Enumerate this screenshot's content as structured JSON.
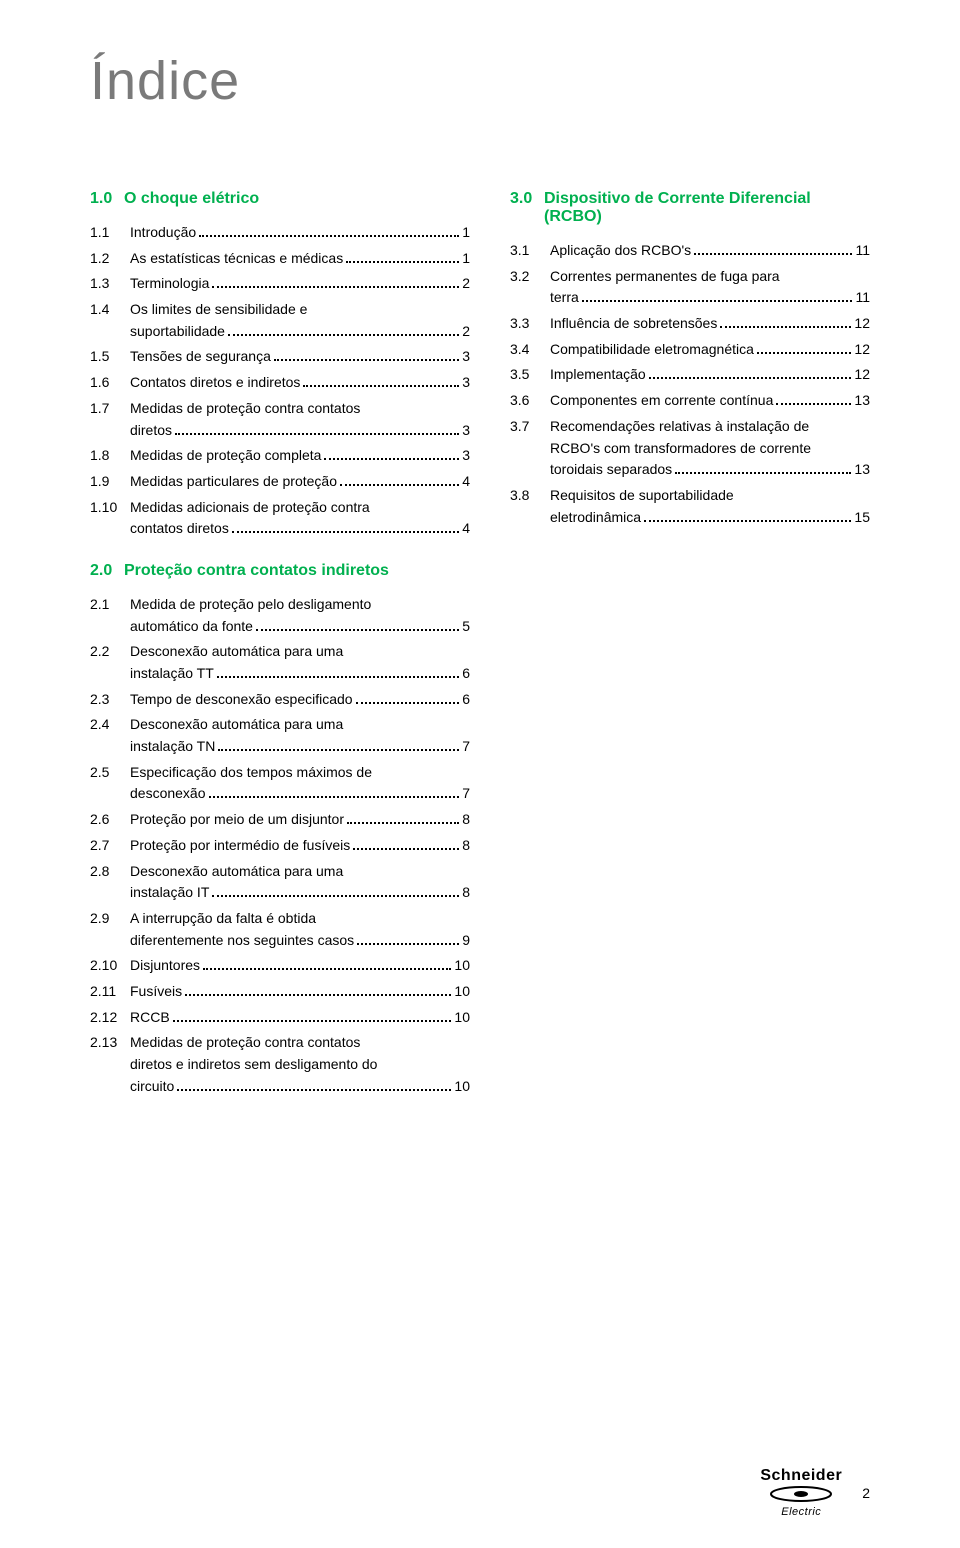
{
  "title": "Índice",
  "left": {
    "section1": {
      "num": "1.0",
      "label": "O choque elétrico",
      "items": [
        {
          "num": "1.1",
          "lines": [
            {
              "t": "Introdução",
              "p": "1"
            }
          ]
        },
        {
          "num": "1.2",
          "lines": [
            {
              "t": "As estatísticas técnicas e médicas",
              "p": "1"
            }
          ]
        },
        {
          "num": "1.3",
          "lines": [
            {
              "t": "Terminologia",
              "p": "2"
            }
          ]
        },
        {
          "num": "1.4",
          "lines": [
            {
              "t": "Os limites de sensibilidade e"
            },
            {
              "t": "suportabilidade",
              "p": "2"
            }
          ]
        },
        {
          "num": "1.5",
          "lines": [
            {
              "t": "Tensões de segurança",
              "p": "3"
            }
          ]
        },
        {
          "num": "1.6",
          "lines": [
            {
              "t": "Contatos diretos e indiretos",
              "p": "3"
            }
          ]
        },
        {
          "num": "1.7",
          "lines": [
            {
              "t": "Medidas de proteção contra contatos"
            },
            {
              "t": "diretos",
              "p": "3"
            }
          ]
        },
        {
          "num": "1.8",
          "lines": [
            {
              "t": "Medidas de proteção completa",
              "p": "3"
            }
          ]
        },
        {
          "num": "1.9",
          "lines": [
            {
              "t": "Medidas particulares de proteção",
              "p": "4"
            }
          ]
        },
        {
          "num": "1.10",
          "lines": [
            {
              "t": "Medidas adicionais de proteção contra"
            },
            {
              "t": "contatos diretos",
              "p": "4"
            }
          ]
        }
      ]
    },
    "section2": {
      "num": "2.0",
      "label": "Proteção contra contatos indiretos",
      "items": [
        {
          "num": "2.1",
          "lines": [
            {
              "t": "Medida de proteção pelo desligamento"
            },
            {
              "t": "automático da fonte",
              "p": "5"
            }
          ]
        },
        {
          "num": "2.2",
          "lines": [
            {
              "t": "Desconexão automática para uma"
            },
            {
              "t": "instalação TT",
              "p": "6"
            }
          ]
        },
        {
          "num": "2.3",
          "lines": [
            {
              "t": "Tempo de desconexão especificado",
              "p": "6"
            }
          ]
        },
        {
          "num": "2.4",
          "lines": [
            {
              "t": "Desconexão automática para uma"
            },
            {
              "t": "instalação TN",
              "p": "7"
            }
          ]
        },
        {
          "num": "2.5",
          "lines": [
            {
              "t": "Especificação dos tempos máximos de"
            },
            {
              "t": "desconexão",
              "p": "7"
            }
          ]
        },
        {
          "num": "2.6",
          "lines": [
            {
              "t": "Proteção por meio de um disjuntor",
              "p": "8"
            }
          ]
        },
        {
          "num": "2.7",
          "lines": [
            {
              "t": "Proteção por intermédio de fusíveis",
              "p": "8"
            }
          ]
        },
        {
          "num": "2.8",
          "lines": [
            {
              "t": "Desconexão automática para uma"
            },
            {
              "t": "instalação IT",
              "p": "8"
            }
          ]
        },
        {
          "num": "2.9",
          "lines": [
            {
              "t": "A interrupção da falta é obtida"
            },
            {
              "t": "diferentemente nos seguintes casos",
              "p": "9"
            }
          ]
        },
        {
          "num": "2.10",
          "lines": [
            {
              "t": "Disjuntores",
              "p": "10"
            }
          ]
        },
        {
          "num": "2.11",
          "lines": [
            {
              "t": "Fusíveis",
              "p": "10"
            }
          ]
        },
        {
          "num": "2.12",
          "lines": [
            {
              "t": "RCCB",
              "p": "10"
            }
          ]
        },
        {
          "num": "2.13",
          "lines": [
            {
              "t": "Medidas de proteção contra contatos"
            },
            {
              "t": "diretos e indiretos sem desligamento do"
            },
            {
              "t": "circuito",
              "p": "10"
            }
          ]
        }
      ]
    }
  },
  "right": {
    "section3": {
      "num": "3.0",
      "label": "Dispositivo de Corrente Diferencial (RCBO)",
      "items": [
        {
          "num": "3.1",
          "lines": [
            {
              "t": "Aplicação dos RCBO's",
              "p": "11"
            }
          ]
        },
        {
          "num": "3.2",
          "lines": [
            {
              "t": "Correntes permanentes de fuga para"
            },
            {
              "t": "terra",
              "p": "11"
            }
          ]
        },
        {
          "num": "3.3",
          "lines": [
            {
              "t": "Influência de sobretensões",
              "p": "12"
            }
          ]
        },
        {
          "num": "3.4",
          "lines": [
            {
              "t": "Compatibilidade eletromagnética",
              "p": "12"
            }
          ]
        },
        {
          "num": "3.5",
          "lines": [
            {
              "t": "Implementação",
              "p": "12"
            }
          ]
        },
        {
          "num": "3.6",
          "lines": [
            {
              "t": "Componentes em corrente contínua",
              "p": "13"
            }
          ]
        },
        {
          "num": "3.7",
          "lines": [
            {
              "t": "Recomendações relativas à instalação de"
            },
            {
              "t": "RCBO's com transformadores de corrente"
            },
            {
              "t": "toroidais separados",
              "p": "13"
            }
          ]
        },
        {
          "num": "3.8",
          "lines": [
            {
              "t": "Requisitos de suportabilidade"
            },
            {
              "t": "eletrodinâmica",
              "p": "15"
            }
          ]
        }
      ]
    }
  },
  "logo": {
    "top": "Schneider",
    "bot": "Electric"
  },
  "page_number": "2",
  "colors": {
    "accent": "#00b04f",
    "title": "#7a7a7a",
    "text": "#000000"
  }
}
